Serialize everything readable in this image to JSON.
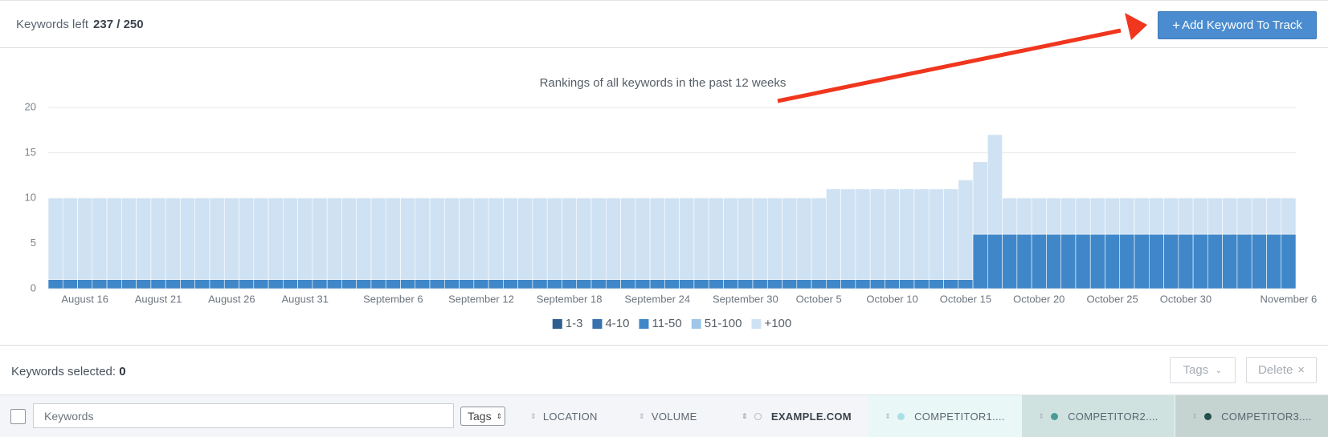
{
  "header": {
    "keywords_left_label": "Keywords left",
    "keywords_left_value": "237 / 250",
    "add_button": "Add Keyword To Track"
  },
  "chart_data": {
    "type": "bar",
    "stacked": true,
    "title": "Rankings of all keywords in the past 12 weeks",
    "categories": [
      null,
      null,
      "August 16",
      null,
      null,
      null,
      null,
      "August 21",
      null,
      null,
      null,
      null,
      "August 26",
      null,
      null,
      null,
      null,
      "August 31",
      null,
      null,
      null,
      null,
      null,
      "September 6",
      null,
      null,
      null,
      null,
      null,
      "September 12",
      null,
      null,
      null,
      null,
      null,
      "September 18",
      null,
      null,
      null,
      null,
      null,
      "September 24",
      null,
      null,
      null,
      null,
      null,
      "September 30",
      null,
      null,
      null,
      null,
      "October 5",
      null,
      null,
      null,
      null,
      "October 10",
      null,
      null,
      null,
      null,
      "October 15",
      null,
      null,
      null,
      null,
      "October 20",
      null,
      null,
      null,
      null,
      "October 25",
      null,
      null,
      null,
      null,
      "October 30",
      null,
      null,
      null,
      null,
      null,
      null,
      "November 6"
    ],
    "series": [
      {
        "name": "1-3",
        "color": "#2f5f8f",
        "values": [
          0,
          0,
          0,
          0,
          0,
          0,
          0,
          0,
          0,
          0,
          0,
          0,
          0,
          0,
          0,
          0,
          0,
          0,
          0,
          0,
          0,
          0,
          0,
          0,
          0,
          0,
          0,
          0,
          0,
          0,
          0,
          0,
          0,
          0,
          0,
          0,
          0,
          0,
          0,
          0,
          0,
          0,
          0,
          0,
          0,
          0,
          0,
          0,
          0,
          0,
          0,
          0,
          0,
          0,
          0,
          0,
          0,
          0,
          0,
          0,
          0,
          0,
          0,
          0,
          0,
          0,
          0,
          0,
          0,
          0,
          0,
          0,
          0,
          0,
          0,
          0,
          0,
          0,
          0,
          0,
          0,
          0,
          0,
          0,
          0
        ]
      },
      {
        "name": "4-10",
        "color": "#3672ad",
        "values": [
          0,
          0,
          0,
          0,
          0,
          0,
          0,
          0,
          0,
          0,
          0,
          0,
          0,
          0,
          0,
          0,
          0,
          0,
          0,
          0,
          0,
          0,
          0,
          0,
          0,
          0,
          0,
          0,
          0,
          0,
          0,
          0,
          0,
          0,
          0,
          0,
          0,
          0,
          0,
          0,
          0,
          0,
          0,
          0,
          0,
          0,
          0,
          0,
          0,
          0,
          0,
          0,
          0,
          0,
          0,
          0,
          0,
          0,
          0,
          0,
          0,
          0,
          0,
          0,
          0,
          0,
          0,
          0,
          0,
          0,
          0,
          0,
          0,
          0,
          0,
          0,
          0,
          0,
          0,
          0,
          0,
          0,
          0,
          0,
          0
        ]
      },
      {
        "name": "11-50",
        "color": "#3f87c8",
        "values": [
          1,
          1,
          1,
          1,
          1,
          1,
          1,
          1,
          1,
          1,
          1,
          1,
          1,
          1,
          1,
          1,
          1,
          1,
          1,
          1,
          1,
          1,
          1,
          1,
          1,
          1,
          1,
          1,
          1,
          1,
          1,
          1,
          1,
          1,
          1,
          1,
          1,
          1,
          1,
          1,
          1,
          1,
          1,
          1,
          1,
          1,
          1,
          1,
          1,
          1,
          1,
          1,
          1,
          1,
          1,
          1,
          1,
          1,
          1,
          1,
          1,
          1,
          1,
          6,
          6,
          6,
          6,
          6,
          6,
          6,
          6,
          6,
          6,
          6,
          6,
          6,
          6,
          6,
          6,
          6,
          6,
          6,
          6,
          6,
          6
        ]
      },
      {
        "name": "51-100",
        "color": "#9fc6e8",
        "values": [
          0,
          0,
          0,
          0,
          0,
          0,
          0,
          0,
          0,
          0,
          0,
          0,
          0,
          0,
          0,
          0,
          0,
          0,
          0,
          0,
          0,
          0,
          0,
          0,
          0,
          0,
          0,
          0,
          0,
          0,
          0,
          0,
          0,
          0,
          0,
          0,
          0,
          0,
          0,
          0,
          0,
          0,
          0,
          0,
          0,
          0,
          0,
          0,
          0,
          0,
          0,
          0,
          0,
          0,
          0,
          0,
          0,
          0,
          0,
          0,
          0,
          0,
          0,
          0,
          0,
          0,
          0,
          0,
          0,
          0,
          0,
          0,
          0,
          0,
          0,
          0,
          0,
          0,
          0,
          0,
          0,
          0,
          0,
          0,
          0
        ]
      },
      {
        "name": "+100",
        "color": "#cfe2f3",
        "values": [
          9,
          9,
          9,
          9,
          9,
          9,
          9,
          9,
          9,
          9,
          9,
          9,
          9,
          9,
          9,
          9,
          9,
          9,
          9,
          9,
          9,
          9,
          9,
          9,
          9,
          9,
          9,
          9,
          9,
          9,
          9,
          9,
          9,
          9,
          9,
          9,
          9,
          9,
          9,
          9,
          9,
          9,
          9,
          9,
          9,
          9,
          9,
          9,
          9,
          9,
          9,
          9,
          9,
          10,
          10,
          10,
          10,
          10,
          10,
          10,
          10,
          10,
          11,
          8,
          11,
          4,
          4,
          4,
          4,
          4,
          4,
          4,
          4,
          4,
          4,
          4,
          4,
          4,
          4,
          4,
          4,
          4,
          4,
          4,
          4
        ]
      }
    ],
    "ylim": [
      0,
      20
    ],
    "yticks": [
      0,
      5,
      10,
      15,
      20
    ],
    "grid": true,
    "legend": "bottom"
  },
  "toolbar": {
    "selected_label": "Keywords selected:",
    "selected_count": 0,
    "tags_button": "Tags",
    "delete_button": "Delete"
  },
  "table": {
    "search_placeholder": "Keywords",
    "tags_select": "Tags",
    "columns": [
      "LOCATION",
      "VOLUME",
      "EXAMPLE.COM",
      "COMPETITOR1....",
      "COMPETITOR2....",
      "COMPETITOR3...."
    ]
  }
}
